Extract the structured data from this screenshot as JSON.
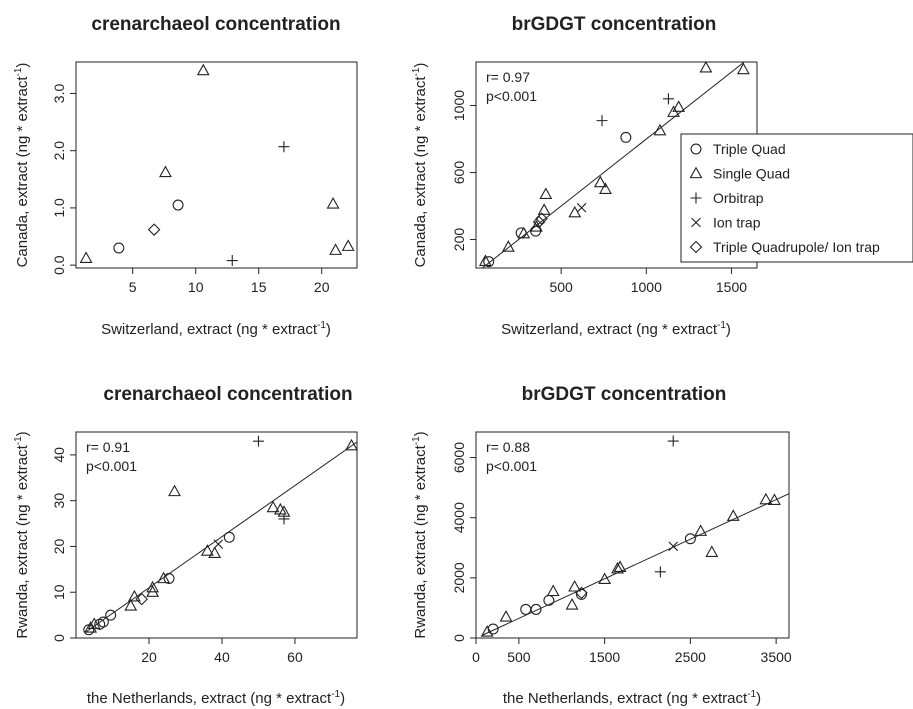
{
  "chart_data": [
    {
      "type": "scatter",
      "title": "crenarchaeol concentration",
      "xlabel": "Switzerland, extract (ng * extract",
      "ylabel": "Canada, extract (ng * extract",
      "unit_superscript": "-1",
      "xlim": [
        0.5,
        22.8
      ],
      "ylim": [
        -0.05,
        3.55
      ],
      "xticks": [
        "5",
        "10",
        "15",
        "20"
      ],
      "xtick_values": [
        5,
        10,
        15,
        20
      ],
      "yticks": [
        "0.0",
        "1.0",
        "2.0",
        "3.0"
      ],
      "ytick_values": [
        0,
        1,
        2,
        3
      ],
      "annotation": [],
      "fit_line": null,
      "points": [
        {
          "x": 1.3,
          "y": 0.12,
          "m": "tri"
        },
        {
          "x": 3.9,
          "y": 0.3,
          "m": "circ"
        },
        {
          "x": 8.6,
          "y": 1.05,
          "m": "circ"
        },
        {
          "x": 6.7,
          "y": 0.62,
          "m": "dia"
        },
        {
          "x": 7.6,
          "y": 1.62,
          "m": "tri"
        },
        {
          "x": 10.6,
          "y": 3.4,
          "m": "tri"
        },
        {
          "x": 12.9,
          "y": 0.08,
          "m": "plus"
        },
        {
          "x": 17.0,
          "y": 2.07,
          "m": "plus"
        },
        {
          "x": 20.9,
          "y": 1.07,
          "m": "tri"
        },
        {
          "x": 21.1,
          "y": 0.26,
          "m": "tri"
        },
        {
          "x": 22.1,
          "y": 0.33,
          "m": "tri"
        }
      ]
    },
    {
      "type": "scatter",
      "title": "brGDGT concentration",
      "xlabel": "Switzerland, extract (ng * extract",
      "ylabel": "Canada, extract (ng * extract",
      "unit_superscript": "-1",
      "xlim": [
        0,
        1650
      ],
      "ylim": [
        30,
        1260
      ],
      "xticks": [
        "500",
        "1000",
        "1500"
      ],
      "xtick_values": [
        500,
        1000,
        1500
      ],
      "yticks": [
        "200",
        "600",
        "1000"
      ],
      "ytick_values": [
        200,
        600,
        1000
      ],
      "annotation": [
        "r= 0.97",
        "p<0.001"
      ],
      "fit_line": {
        "x1": 0,
        "y1": 0,
        "x2": 1650,
        "y2": 1320
      },
      "points": [
        {
          "x": 55,
          "y": 70,
          "m": "tri"
        },
        {
          "x": 75,
          "y": 68,
          "m": "circ"
        },
        {
          "x": 190,
          "y": 155,
          "m": "tri"
        },
        {
          "x": 265,
          "y": 240,
          "m": "circ"
        },
        {
          "x": 280,
          "y": 235,
          "m": "tri"
        },
        {
          "x": 350,
          "y": 250,
          "m": "circ"
        },
        {
          "x": 355,
          "y": 275,
          "m": "tri"
        },
        {
          "x": 370,
          "y": 305,
          "m": "dia"
        },
        {
          "x": 385,
          "y": 325,
          "m": "dia"
        },
        {
          "x": 400,
          "y": 375,
          "m": "tri"
        },
        {
          "x": 410,
          "y": 470,
          "m": "tri"
        },
        {
          "x": 580,
          "y": 360,
          "m": "tri"
        },
        {
          "x": 620,
          "y": 390,
          "m": "x"
        },
        {
          "x": 730,
          "y": 540,
          "m": "tri"
        },
        {
          "x": 760,
          "y": 500,
          "m": "tri"
        },
        {
          "x": 740,
          "y": 910,
          "m": "plus"
        },
        {
          "x": 880,
          "y": 810,
          "m": "circ"
        },
        {
          "x": 1080,
          "y": 850,
          "m": "tri"
        },
        {
          "x": 1130,
          "y": 1040,
          "m": "plus"
        },
        {
          "x": 1160,
          "y": 960,
          "m": "tri"
        },
        {
          "x": 1190,
          "y": 990,
          "m": "tri"
        },
        {
          "x": 1350,
          "y": 1225,
          "m": "tri"
        },
        {
          "x": 1570,
          "y": 1215,
          "m": "tri"
        }
      ],
      "legend": {
        "position": "right",
        "entries": [
          {
            "label": "Triple Quad",
            "m": "circ"
          },
          {
            "label": "Single Quad",
            "m": "tri"
          },
          {
            "label": "Orbitrap",
            "m": "plus"
          },
          {
            "label": "Ion trap",
            "m": "x"
          },
          {
            "label": "Triple Quadrupole/ Ion trap",
            "m": "dia"
          }
        ]
      }
    },
    {
      "type": "scatter",
      "title": "crenarchaeol concentration",
      "xlabel": "the Netherlands, extract (ng * extract",
      "ylabel": "Rwanda, extract (ng * extract",
      "unit_superscript": "-1",
      "xlim": [
        0,
        77
      ],
      "ylim": [
        0,
        45
      ],
      "xticks": [
        "20",
        "40",
        "60"
      ],
      "xtick_values": [
        20,
        40,
        60
      ],
      "yticks": [
        "0",
        "10",
        "20",
        "30",
        "40"
      ],
      "ytick_values": [
        0,
        10,
        20,
        30,
        40
      ],
      "annotation": [
        "r= 0.91",
        "p<0.001"
      ],
      "fit_line": {
        "x1": 2.5,
        "y1": 1.2,
        "x2": 77,
        "y2": 42.8
      },
      "points": [
        {
          "x": 3.5,
          "y": 1.8,
          "m": "circ"
        },
        {
          "x": 4.0,
          "y": 2.2,
          "m": "tri"
        },
        {
          "x": 5.0,
          "y": 3.0,
          "m": "tri"
        },
        {
          "x": 6.5,
          "y": 3.0,
          "m": "circ"
        },
        {
          "x": 7.5,
          "y": 3.5,
          "m": "circ"
        },
        {
          "x": 9.5,
          "y": 5.0,
          "m": "circ"
        },
        {
          "x": 15.0,
          "y": 7.0,
          "m": "tri"
        },
        {
          "x": 16.0,
          "y": 9.0,
          "m": "tri"
        },
        {
          "x": 18.0,
          "y": 8.5,
          "m": "dia"
        },
        {
          "x": 21.0,
          "y": 10.0,
          "m": "tri"
        },
        {
          "x": 21.0,
          "y": 11.0,
          "m": "tri"
        },
        {
          "x": 24.0,
          "y": 13.0,
          "m": "tri"
        },
        {
          "x": 25.5,
          "y": 13.0,
          "m": "circ"
        },
        {
          "x": 27.0,
          "y": 32.0,
          "m": "tri"
        },
        {
          "x": 36.0,
          "y": 19.0,
          "m": "tri"
        },
        {
          "x": 38.0,
          "y": 18.5,
          "m": "tri"
        },
        {
          "x": 39.0,
          "y": 20.5,
          "m": "x"
        },
        {
          "x": 42.0,
          "y": 22.0,
          "m": "circ"
        },
        {
          "x": 50.0,
          "y": 43.0,
          "m": "plus"
        },
        {
          "x": 54.0,
          "y": 28.5,
          "m": "tri"
        },
        {
          "x": 56.0,
          "y": 28.0,
          "m": "tri"
        },
        {
          "x": 57.0,
          "y": 26.0,
          "m": "plus"
        },
        {
          "x": 57.0,
          "y": 27.5,
          "m": "tri"
        },
        {
          "x": 75.5,
          "y": 42.0,
          "m": "tri"
        }
      ]
    },
    {
      "type": "scatter",
      "title": "brGDGT concentration",
      "xlabel": "the Netherlands, extract (ng * extract",
      "ylabel": "Rwanda, extract (ng * extract",
      "unit_superscript": "-1",
      "xlim": [
        0,
        3650
      ],
      "ylim": [
        0,
        6850
      ],
      "xticks": [
        "0",
        "500",
        "1500",
        "2500",
        "3500"
      ],
      "xtick_values": [
        0,
        500,
        1500,
        2500,
        3500
      ],
      "yticks": [
        "0",
        "2000",
        "4000",
        "6000"
      ],
      "ytick_values": [
        0,
        2000,
        4000,
        6000
      ],
      "annotation": [
        "r= 0.88",
        "p<0.001"
      ],
      "fit_line": {
        "x1": 80,
        "y1": 100,
        "x2": 3650,
        "y2": 4800
      },
      "points": [
        {
          "x": 130,
          "y": 200,
          "m": "tri"
        },
        {
          "x": 200,
          "y": 300,
          "m": "circ"
        },
        {
          "x": 350,
          "y": 700,
          "m": "tri"
        },
        {
          "x": 580,
          "y": 950,
          "m": "circ"
        },
        {
          "x": 700,
          "y": 950,
          "m": "circ"
        },
        {
          "x": 850,
          "y": 1250,
          "m": "circ"
        },
        {
          "x": 900,
          "y": 1550,
          "m": "tri"
        },
        {
          "x": 1120,
          "y": 1100,
          "m": "tri"
        },
        {
          "x": 1150,
          "y": 1700,
          "m": "tri"
        },
        {
          "x": 1230,
          "y": 1450,
          "m": "circ"
        },
        {
          "x": 1230,
          "y": 1500,
          "m": "dia"
        },
        {
          "x": 1500,
          "y": 1950,
          "m": "tri"
        },
        {
          "x": 1650,
          "y": 2300,
          "m": "tri"
        },
        {
          "x": 1680,
          "y": 2350,
          "m": "tri"
        },
        {
          "x": 2150,
          "y": 2200,
          "m": "plus"
        },
        {
          "x": 2300,
          "y": 3050,
          "m": "x"
        },
        {
          "x": 2300,
          "y": 6550,
          "m": "plus"
        },
        {
          "x": 2500,
          "y": 3300,
          "m": "circ"
        },
        {
          "x": 2620,
          "y": 3550,
          "m": "tri"
        },
        {
          "x": 2750,
          "y": 2850,
          "m": "tri"
        },
        {
          "x": 3000,
          "y": 4050,
          "m": "tri"
        },
        {
          "x": 3380,
          "y": 4600,
          "m": "tri"
        },
        {
          "x": 3480,
          "y": 4580,
          "m": "tri"
        }
      ]
    }
  ]
}
